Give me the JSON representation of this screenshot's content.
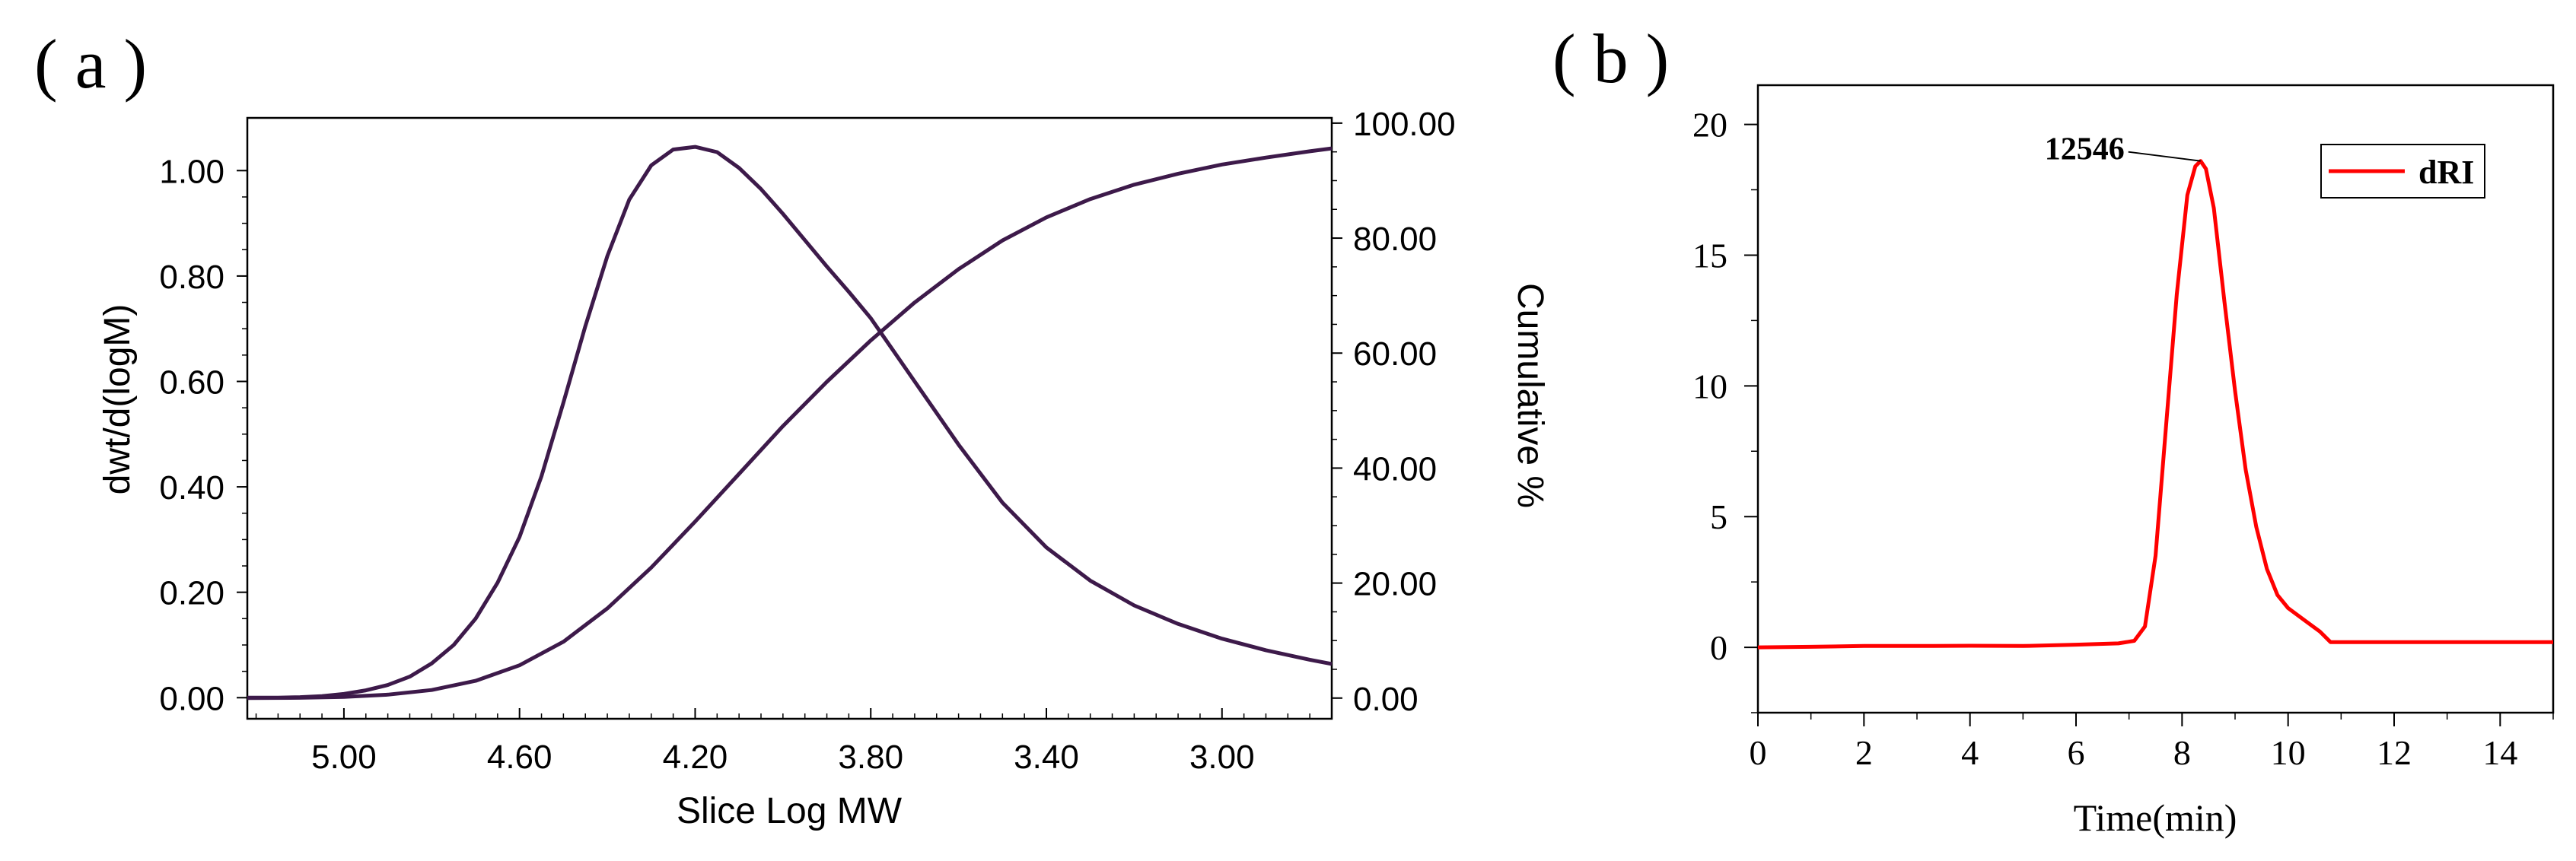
{
  "chart_data": [
    {
      "panel_label": "( a )",
      "type": "line",
      "xlabel": "Slice Log MW",
      "ylabel": "dwt/d(logM)",
      "ylabel_right": "Cumulative %",
      "x_reversed": true,
      "xlim": [
        5.22,
        2.75
      ],
      "ylim": [
        -0.04,
        1.1
      ],
      "ylim_right": [
        -3.6,
        100.91
      ],
      "x_ticks": [
        "5.00",
        "4.60",
        "4.20",
        "3.80",
        "3.40",
        "3.00"
      ],
      "y_ticks": [
        "0.00",
        "0.20",
        "0.40",
        "0.60",
        "0.80",
        "1.00"
      ],
      "y_ticks_right": [
        "0.00",
        "20.00",
        "40.00",
        "60.00",
        "80.00",
        "100.00"
      ],
      "color": "#3d1a4a",
      "series": [
        {
          "name": "dwt/d(logM)",
          "axis": "left",
          "x": [
            5.22,
            5.15,
            5.1,
            5.05,
            5.0,
            4.95,
            4.9,
            4.85,
            4.8,
            4.75,
            4.7,
            4.65,
            4.6,
            4.55,
            4.5,
            4.45,
            4.4,
            4.35,
            4.3,
            4.25,
            4.2,
            4.15,
            4.1,
            4.05,
            4.0,
            3.95,
            3.9,
            3.85,
            3.8,
            3.75,
            3.7,
            3.65,
            3.6,
            3.5,
            3.4,
            3.3,
            3.2,
            3.1,
            3.0,
            2.9,
            2.8,
            2.75
          ],
          "values": [
            0.0,
            0.0,
            0.001,
            0.003,
            0.007,
            0.014,
            0.024,
            0.04,
            0.065,
            0.1,
            0.15,
            0.218,
            0.305,
            0.42,
            0.56,
            0.705,
            0.838,
            0.945,
            1.01,
            1.04,
            1.045,
            1.035,
            1.005,
            0.965,
            0.918,
            0.868,
            0.818,
            0.77,
            0.72,
            0.66,
            0.6,
            0.54,
            0.48,
            0.37,
            0.285,
            0.222,
            0.175,
            0.14,
            0.112,
            0.09,
            0.072,
            0.064
          ]
        },
        {
          "name": "Cumulative %",
          "axis": "right",
          "x": [
            5.22,
            5.1,
            5.0,
            4.9,
            4.8,
            4.7,
            4.6,
            4.5,
            4.4,
            4.3,
            4.2,
            4.1,
            4.0,
            3.9,
            3.8,
            3.7,
            3.6,
            3.5,
            3.4,
            3.3,
            3.2,
            3.1,
            3.0,
            2.9,
            2.8,
            2.75
          ],
          "values": [
            0.0,
            0.05,
            0.2,
            0.6,
            1.4,
            3.0,
            5.7,
            9.8,
            15.6,
            22.7,
            30.7,
            39.0,
            47.3,
            55.0,
            62.2,
            68.8,
            74.6,
            79.6,
            83.6,
            86.8,
            89.3,
            91.2,
            92.8,
            94.0,
            95.1,
            95.6
          ]
        }
      ]
    },
    {
      "panel_label": "( b )",
      "type": "line",
      "xlabel": "Time(min)",
      "ylabel": "",
      "xlim": [
        0,
        15
      ],
      "ylim": [
        -2.5,
        21.5
      ],
      "x_ticks": [
        "0",
        "2",
        "4",
        "6",
        "8",
        "10",
        "12",
        "14"
      ],
      "y_ticks": [
        "0",
        "5",
        "10",
        "15",
        "20"
      ],
      "color": "#ff0000",
      "legend": {
        "label": "dRI",
        "placement": "top-right"
      },
      "annotation": {
        "text": "12546",
        "x": 8.35,
        "y": 18.6
      },
      "series": [
        {
          "name": "dRI",
          "x": [
            0,
            1,
            2,
            3,
            4,
            5,
            6,
            6.8,
            7.1,
            7.3,
            7.5,
            7.7,
            7.9,
            8.1,
            8.25,
            8.35,
            8.45,
            8.6,
            8.8,
            9.0,
            9.2,
            9.4,
            9.6,
            9.8,
            10.0,
            10.3,
            10.6,
            10.8,
            11,
            12,
            13,
            14,
            15
          ],
          "values": [
            0.0,
            0.02,
            0.05,
            0.05,
            0.06,
            0.05,
            0.1,
            0.15,
            0.25,
            0.8,
            3.5,
            8.5,
            13.5,
            17.3,
            18.4,
            18.6,
            18.3,
            16.8,
            13.2,
            9.8,
            6.8,
            4.6,
            3.0,
            2.0,
            1.5,
            1.05,
            0.6,
            0.2,
            0.2,
            0.2,
            0.2,
            0.2,
            0.2
          ]
        }
      ]
    }
  ]
}
